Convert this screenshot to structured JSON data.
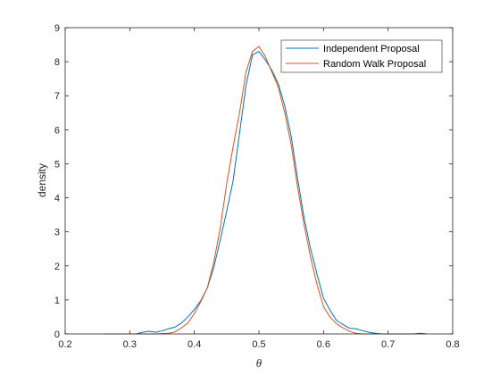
{
  "chart_data": {
    "type": "line",
    "title": "",
    "xlabel": "θ",
    "ylabel": "density",
    "xlim": [
      0.2,
      0.8
    ],
    "ylim": [
      0,
      9
    ],
    "xticks": [
      0.2,
      0.3,
      0.4,
      0.5,
      0.6,
      0.7,
      0.8
    ],
    "xtick_labels": [
      "0.2",
      "0.3",
      "0.4",
      "0.5",
      "0.6",
      "0.7",
      "0.8"
    ],
    "yticks": [
      0,
      1,
      2,
      3,
      4,
      5,
      6,
      7,
      8,
      9
    ],
    "ytick_labels": [
      "0",
      "1",
      "2",
      "3",
      "4",
      "5",
      "6",
      "7",
      "8",
      "9"
    ],
    "grid": false,
    "legend_position": "top-right",
    "series": [
      {
        "name": "Independent Proposal",
        "color": "#0072BD",
        "x": [
          0.31,
          0.32,
          0.33,
          0.34,
          0.35,
          0.36,
          0.37,
          0.38,
          0.39,
          0.4,
          0.41,
          0.42,
          0.43,
          0.44,
          0.45,
          0.46,
          0.47,
          0.48,
          0.49,
          0.5,
          0.51,
          0.52,
          0.53,
          0.54,
          0.55,
          0.56,
          0.57,
          0.58,
          0.59,
          0.6,
          0.61,
          0.62,
          0.63,
          0.64,
          0.65,
          0.66,
          0.67,
          0.68,
          0.69,
          0.7,
          0.72,
          0.74,
          0.75,
          0.76
        ],
        "y": [
          0.0,
          0.05,
          0.08,
          0.05,
          0.09,
          0.15,
          0.2,
          0.32,
          0.5,
          0.72,
          0.98,
          1.35,
          1.95,
          2.75,
          3.6,
          4.5,
          5.9,
          7.3,
          8.2,
          8.3,
          8.05,
          7.75,
          7.35,
          6.7,
          5.8,
          4.55,
          3.4,
          2.5,
          1.75,
          1.05,
          0.7,
          0.4,
          0.28,
          0.17,
          0.15,
          0.1,
          0.05,
          0.02,
          0.0,
          0.0,
          0.0,
          0.0,
          0.02,
          0.0
        ]
      },
      {
        "name": "Random Walk Proposal",
        "color": "#D95319",
        "x": [
          0.26,
          0.3,
          0.34,
          0.36,
          0.37,
          0.38,
          0.39,
          0.4,
          0.41,
          0.42,
          0.43,
          0.44,
          0.45,
          0.46,
          0.47,
          0.48,
          0.49,
          0.5,
          0.51,
          0.52,
          0.53,
          0.54,
          0.55,
          0.56,
          0.57,
          0.58,
          0.59,
          0.6,
          0.61,
          0.62,
          0.63,
          0.64,
          0.65,
          0.66,
          0.68
        ],
        "y": [
          0.0,
          0.0,
          0.0,
          0.02,
          0.06,
          0.18,
          0.32,
          0.6,
          0.95,
          1.35,
          2.1,
          3.1,
          4.4,
          5.5,
          6.5,
          7.7,
          8.3,
          8.45,
          8.15,
          7.7,
          7.25,
          6.5,
          5.55,
          4.3,
          3.2,
          2.25,
          1.45,
          0.8,
          0.5,
          0.3,
          0.18,
          0.08,
          0.02,
          0.0,
          0.0
        ]
      }
    ]
  }
}
